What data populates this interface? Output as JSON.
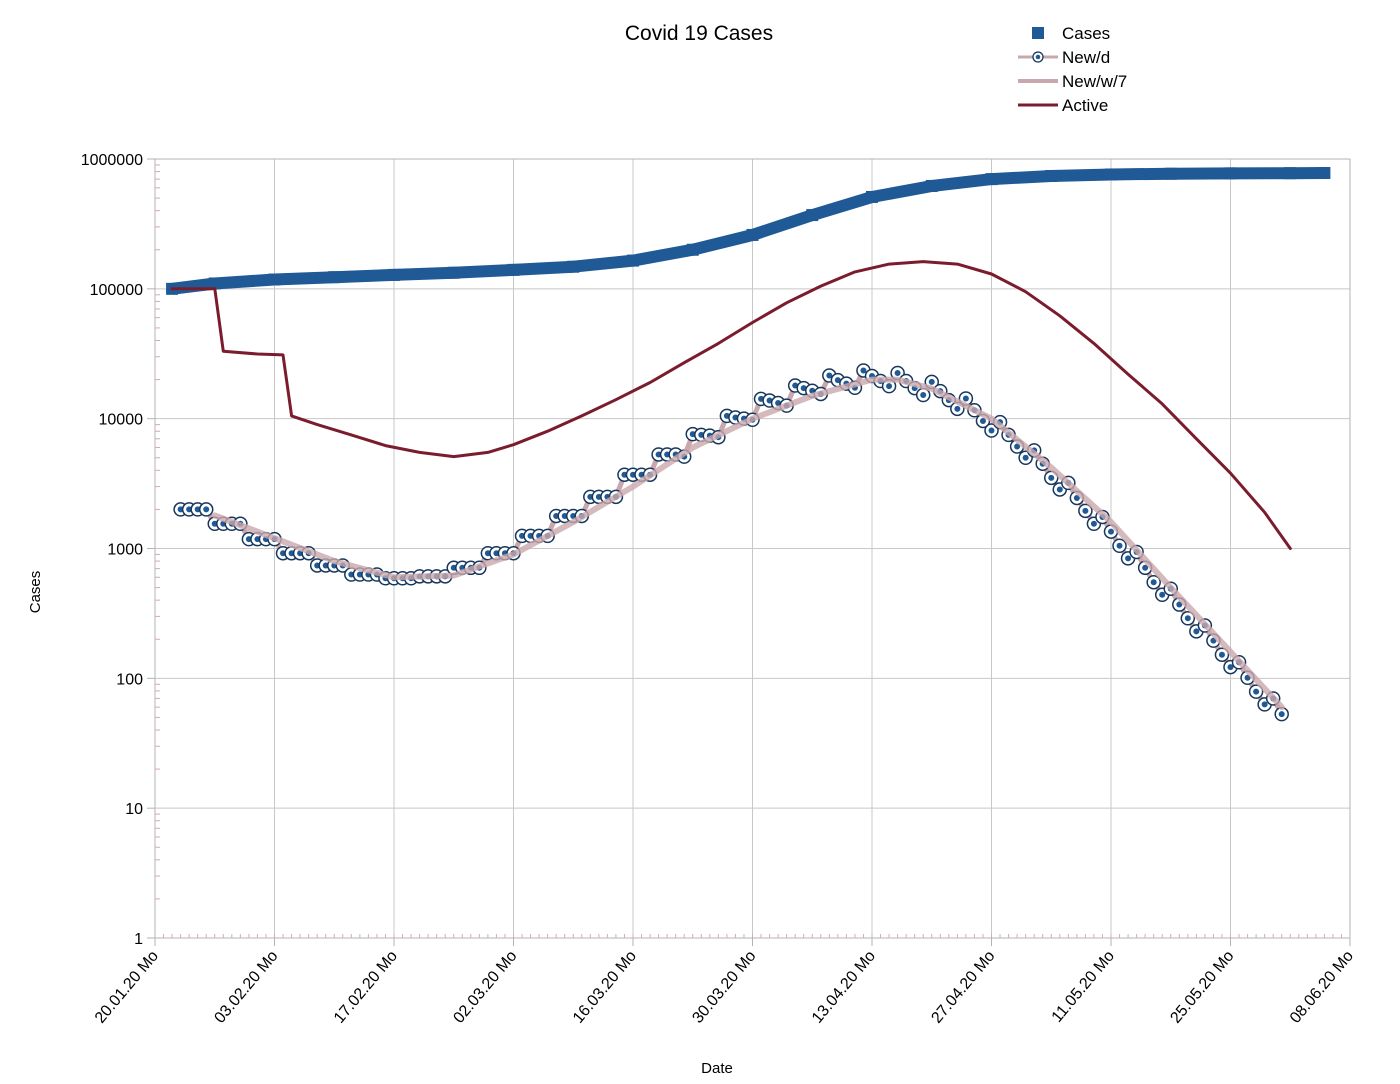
{
  "chart_data": {
    "type": "line",
    "title": "Covid 19 Cases",
    "xlabel": "Date",
    "ylabel": "Cases",
    "yscale": "log",
    "ylim": [
      1,
      1000000
    ],
    "y_ticks": [
      "1",
      "10",
      "100",
      "1000",
      "10000",
      "100000",
      "1000000"
    ],
    "x_range": [
      "20.01.20 Mo",
      "08.06.20 Mo"
    ],
    "x_ticks": [
      "20.01.20 Mo",
      "03.02.20 Mo",
      "17.02.20 Mo",
      "02.03.20 Mo",
      "16.03.20 Mo",
      "30.03.20 Mo",
      "13.04.20 Mo",
      "27.04.20 Mo",
      "11.05.20 Mo",
      "25.05.20 Mo",
      "08.06.20 Mo"
    ],
    "grid": true,
    "legend_position": "top-right",
    "series": [
      {
        "name": "Cases",
        "style": "square-markers",
        "color": "#1f5a96",
        "points": [
          [
            "22.01.20",
            100000
          ],
          [
            "27.01.20",
            110000
          ],
          [
            "03.02.20",
            118000
          ],
          [
            "10.02.20",
            123000
          ],
          [
            "17.02.20",
            128000
          ],
          [
            "24.02.20",
            133000
          ],
          [
            "02.03.20",
            140000
          ],
          [
            "09.03.20",
            148000
          ],
          [
            "16.03.20",
            165000
          ],
          [
            "23.03.20",
            200000
          ],
          [
            "30.03.20",
            260000
          ],
          [
            "06.04.20",
            370000
          ],
          [
            "13.04.20",
            510000
          ],
          [
            "20.04.20",
            620000
          ],
          [
            "27.04.20",
            700000
          ],
          [
            "04.05.20",
            740000
          ],
          [
            "11.05.20",
            760000
          ],
          [
            "18.05.20",
            770000
          ],
          [
            "25.05.20",
            775000
          ],
          [
            "01.06.20",
            778000
          ],
          [
            "05.06.20",
            780000
          ]
        ]
      },
      {
        "name": "New/d",
        "style": "circle-markers",
        "color": "#1f5a96",
        "points": [
          [
            "23.01.20",
            2000
          ],
          [
            "24.01.20",
            2000
          ],
          [
            "25.01.20",
            2000
          ],
          [
            "26.01.20",
            2000
          ],
          [
            "27.01.20",
            1550
          ],
          [
            "28.01.20",
            1550
          ],
          [
            "29.01.20",
            1550
          ],
          [
            "30.01.20",
            1550
          ],
          [
            "31.01.20",
            1180
          ],
          [
            "01.02.20",
            1180
          ],
          [
            "02.02.20",
            1180
          ],
          [
            "03.02.20",
            1180
          ],
          [
            "04.02.20",
            920
          ],
          [
            "05.02.20",
            920
          ],
          [
            "06.02.20",
            920
          ],
          [
            "07.02.20",
            920
          ],
          [
            "08.02.20",
            740
          ],
          [
            "09.02.20",
            740
          ],
          [
            "10.02.20",
            740
          ],
          [
            "11.02.20",
            740
          ],
          [
            "12.02.20",
            630
          ],
          [
            "13.02.20",
            630
          ],
          [
            "14.02.20",
            630
          ],
          [
            "15.02.20",
            630
          ],
          [
            "16.02.20",
            590
          ],
          [
            "17.02.20",
            590
          ],
          [
            "18.02.20",
            590
          ],
          [
            "19.02.20",
            590
          ],
          [
            "20.02.20",
            610
          ],
          [
            "21.02.20",
            610
          ],
          [
            "22.02.20",
            610
          ],
          [
            "23.02.20",
            610
          ],
          [
            "24.02.20",
            710
          ],
          [
            "25.02.20",
            710
          ],
          [
            "26.02.20",
            710
          ],
          [
            "27.02.20",
            710
          ],
          [
            "28.02.20",
            920
          ],
          [
            "29.02.20",
            920
          ],
          [
            "01.03.20",
            920
          ],
          [
            "02.03.20",
            920
          ],
          [
            "03.03.20",
            1250
          ],
          [
            "04.03.20",
            1250
          ],
          [
            "05.03.20",
            1250
          ],
          [
            "06.03.20",
            1250
          ],
          [
            "07.03.20",
            1780
          ],
          [
            "08.03.20",
            1780
          ],
          [
            "09.03.20",
            1780
          ],
          [
            "10.03.20",
            1780
          ],
          [
            "11.03.20",
            2500
          ],
          [
            "12.03.20",
            2500
          ],
          [
            "13.03.20",
            2500
          ],
          [
            "14.03.20",
            2500
          ],
          [
            "15.03.20",
            3700
          ],
          [
            "16.03.20",
            3700
          ],
          [
            "17.03.20",
            3700
          ],
          [
            "18.03.20",
            3700
          ],
          [
            "19.03.20",
            5300
          ],
          [
            "20.03.20",
            5300
          ],
          [
            "21.03.20",
            5300
          ],
          [
            "22.03.20",
            5100
          ],
          [
            "23.03.20",
            7600
          ],
          [
            "24.03.20",
            7500
          ],
          [
            "25.03.20",
            7400
          ],
          [
            "26.03.20",
            7200
          ],
          [
            "27.03.20",
            10500
          ],
          [
            "28.03.20",
            10200
          ],
          [
            "29.03.20",
            10000
          ],
          [
            "30.03.20",
            9800
          ],
          [
            "31.03.20",
            14200
          ],
          [
            "01.04.20",
            13800
          ],
          [
            "02.04.20",
            13200
          ],
          [
            "03.04.20",
            12600
          ],
          [
            "04.04.20",
            18000
          ],
          [
            "05.04.20",
            17200
          ],
          [
            "06.04.20",
            16400
          ],
          [
            "07.04.20",
            15500
          ],
          [
            "08.04.20",
            21500
          ],
          [
            "09.04.20",
            19800
          ],
          [
            "10.04.20",
            18600
          ],
          [
            "11.04.20",
            17300
          ],
          [
            "12.04.20",
            23500
          ],
          [
            "13.04.20",
            21300
          ],
          [
            "14.04.20",
            19500
          ],
          [
            "15.04.20",
            17800
          ],
          [
            "16.04.20",
            22500
          ],
          [
            "17.04.20",
            19500
          ],
          [
            "18.04.20",
            17200
          ],
          [
            "19.04.20",
            15200
          ],
          [
            "20.04.20",
            19200
          ],
          [
            "21.04.20",
            16300
          ],
          [
            "22.04.20",
            13900
          ],
          [
            "23.04.20",
            11900
          ],
          [
            "24.04.20",
            14300
          ],
          [
            "25.04.20",
            11600
          ],
          [
            "26.04.20",
            9600
          ],
          [
            "27.04.20",
            8100
          ],
          [
            "28.04.20",
            9400
          ],
          [
            "29.04.20",
            7500
          ],
          [
            "30.04.20",
            6100
          ],
          [
            "01.05.20",
            5000
          ],
          [
            "02.05.20",
            5700
          ],
          [
            "03.05.20",
            4500
          ],
          [
            "04.05.20",
            3500
          ],
          [
            "05.05.20",
            2850
          ],
          [
            "06.05.20",
            3200
          ],
          [
            "07.05.20",
            2450
          ],
          [
            "08.05.20",
            1950
          ],
          [
            "09.05.20",
            1550
          ],
          [
            "10.05.20",
            1750
          ],
          [
            "11.05.20",
            1350
          ],
          [
            "12.05.20",
            1050
          ],
          [
            "13.05.20",
            840
          ],
          [
            "14.05.20",
            940
          ],
          [
            "15.05.20",
            710
          ],
          [
            "16.05.20",
            550
          ],
          [
            "17.05.20",
            440
          ],
          [
            "18.05.20",
            490
          ],
          [
            "19.05.20",
            370
          ],
          [
            "20.05.20",
            290
          ],
          [
            "21.05.20",
            230
          ],
          [
            "22.05.20",
            255
          ],
          [
            "23.05.20",
            195
          ],
          [
            "24.05.20",
            152
          ],
          [
            "25.05.20",
            122
          ],
          [
            "26.05.20",
            133
          ],
          [
            "27.05.20",
            101
          ],
          [
            "28.05.20",
            79
          ],
          [
            "29.05.20",
            63
          ],
          [
            "30.05.20",
            70
          ],
          [
            "31.05.20",
            53
          ]
        ]
      },
      {
        "name": "New/w/7",
        "style": "line",
        "color": "#c9a8ad",
        "points": [
          [
            "27.01.20",
            1800
          ],
          [
            "03.02.20",
            1200
          ],
          [
            "10.02.20",
            800
          ],
          [
            "17.02.20",
            600
          ],
          [
            "24.02.20",
            620
          ],
          [
            "02.03.20",
            900
          ],
          [
            "09.03.20",
            1600
          ],
          [
            "16.03.20",
            3000
          ],
          [
            "23.03.20",
            6000
          ],
          [
            "30.03.20",
            10000
          ],
          [
            "06.04.20",
            15000
          ],
          [
            "13.04.20",
            20000
          ],
          [
            "16.04.20",
            20000
          ],
          [
            "20.04.20",
            17000
          ],
          [
            "27.04.20",
            10000
          ],
          [
            "04.05.20",
            4200
          ],
          [
            "11.05.20",
            1600
          ],
          [
            "18.05.20",
            500
          ],
          [
            "25.05.20",
            160
          ],
          [
            "31.05.20",
            60
          ]
        ]
      },
      {
        "name": "Active",
        "style": "line",
        "color": "#7b1c2e",
        "points": [
          [
            "22.01.20",
            100000
          ],
          [
            "27.01.20",
            100000
          ],
          [
            "28.01.20",
            33000
          ],
          [
            "01.02.20",
            31500
          ],
          [
            "04.02.20",
            31000
          ],
          [
            "05.02.20",
            10500
          ],
          [
            "08.02.20",
            9000
          ],
          [
            "12.02.20",
            7500
          ],
          [
            "16.02.20",
            6200
          ],
          [
            "20.02.20",
            5500
          ],
          [
            "24.02.20",
            5100
          ],
          [
            "28.02.20",
            5500
          ],
          [
            "02.03.20",
            6300
          ],
          [
            "06.03.20",
            8000
          ],
          [
            "10.03.20",
            10500
          ],
          [
            "14.03.20",
            14000
          ],
          [
            "18.03.20",
            19000
          ],
          [
            "22.03.20",
            27000
          ],
          [
            "26.03.20",
            38000
          ],
          [
            "30.03.20",
            55000
          ],
          [
            "03.04.20",
            78000
          ],
          [
            "07.04.20",
            105000
          ],
          [
            "11.04.20",
            135000
          ],
          [
            "15.04.20",
            155000
          ],
          [
            "19.04.20",
            162000
          ],
          [
            "23.04.20",
            155000
          ],
          [
            "27.04.20",
            130000
          ],
          [
            "01.05.20",
            95000
          ],
          [
            "05.05.20",
            62000
          ],
          [
            "09.05.20",
            38000
          ],
          [
            "13.05.20",
            22000
          ],
          [
            "17.05.20",
            13000
          ],
          [
            "21.05.20",
            7000
          ],
          [
            "25.05.20",
            3800
          ],
          [
            "29.05.20",
            1900
          ],
          [
            "01.06.20",
            1000
          ]
        ]
      }
    ]
  }
}
